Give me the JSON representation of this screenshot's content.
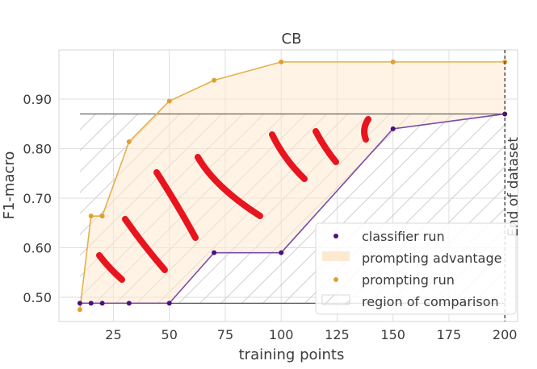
{
  "chart_data": {
    "type": "line",
    "title": "CB",
    "xlabel": "training points",
    "ylabel": "F1-macro",
    "xlim": [
      0,
      205
    ],
    "ylim": [
      0.455,
      0.985
    ],
    "xticks": [
      25,
      50,
      75,
      100,
      125,
      150,
      175,
      200
    ],
    "xtick_labels": [
      "25",
      "50",
      "75",
      "100",
      "125",
      "150",
      "175",
      "200"
    ],
    "yticks": [
      0.5,
      0.6,
      0.7,
      0.8,
      0.9
    ],
    "ytick_labels": [
      "0.50",
      "0.60",
      "0.70",
      "0.80",
      "0.90"
    ],
    "grid": true,
    "series": [
      {
        "name": "classifier run",
        "color": "#4b0f7e",
        "line_color": "#7b4aa8",
        "x": [
          10,
          15,
          20,
          32,
          50,
          70,
          100,
          150,
          200
        ],
        "y": [
          0.488,
          0.488,
          0.488,
          0.488,
          0.488,
          0.59,
          0.59,
          0.84,
          0.87
        ]
      },
      {
        "name": "prompting run",
        "color": "#e0a030",
        "line_color": "#e5b04a",
        "x": [
          10,
          15,
          20,
          32,
          50,
          70,
          100,
          150,
          200
        ],
        "y": [
          0.475,
          0.664,
          0.664,
          0.814,
          0.896,
          0.938,
          0.975,
          0.975,
          0.975
        ]
      }
    ],
    "prompting_advantage": {
      "name": "prompting advantage",
      "color": "#fde9cf"
    },
    "region_of_comparison": {
      "name": "region of comparison",
      "x": [
        10,
        200
      ],
      "y": [
        0.488,
        0.87
      ],
      "line_color": "#555555"
    },
    "end_of_dataset": {
      "x": 200,
      "label": "End of dataset"
    },
    "legend_placement": "lower right",
    "annotations": "red hand-drawn strokes inside the prompting advantage region"
  },
  "legend": {
    "classifier_label": "classifier run",
    "advantage_label": "prompting advantage",
    "prompting_label": "prompting run",
    "comparison_label": "region of comparison"
  }
}
